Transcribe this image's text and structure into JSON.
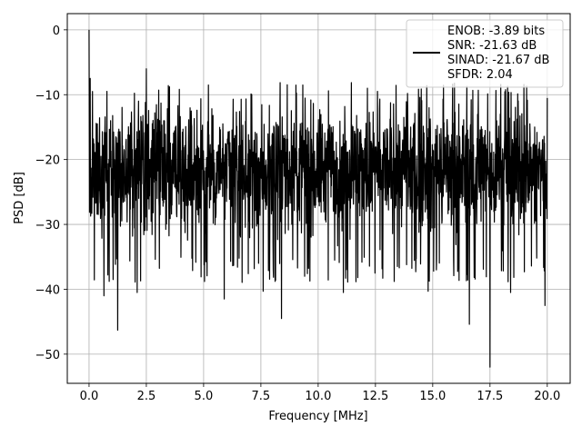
{
  "chart_data": {
    "type": "line",
    "title": "",
    "xlabel": "Frequency [MHz]",
    "ylabel": "PSD [dB]",
    "xlim": [
      -0.95,
      21.0
    ],
    "ylim": [
      -54.5,
      2.5
    ],
    "xticks": [
      0.0,
      2.5,
      5.0,
      7.5,
      10.0,
      12.5,
      15.0,
      17.5,
      20.0
    ],
    "xtick_labels": [
      "0.0",
      "2.5",
      "5.0",
      "7.5",
      "10.0",
      "12.5",
      "15.0",
      "17.5",
      "20.0"
    ],
    "yticks": [
      0,
      -10,
      -20,
      -30,
      -40,
      -50
    ],
    "ytick_labels": [
      "0",
      "−10",
      "−20",
      "−30",
      "−40",
      "−50"
    ],
    "grid": true,
    "legend_position": "top-right",
    "legend_entries": [
      "ENOB: -3.89 bits",
      "SNR: -21.63 dB",
      "SINAD: -21.67 dB",
      "SFDR: 2.04"
    ],
    "series": [
      {
        "color": "#000000",
        "x_start": 0.0,
        "x_end": 20.0,
        "noise_mean": -20,
        "noise_min": -35,
        "noise_max": -8,
        "peaks": [
          {
            "x": 0.0,
            "y": 0.0
          },
          {
            "x": 0.05,
            "y": -7.5
          },
          {
            "x": 0.15,
            "y": -9.5
          },
          {
            "x": 0.65,
            "y": -41.0
          },
          {
            "x": 1.05,
            "y": -38.5
          },
          {
            "x": 1.25,
            "y": -46.3
          },
          {
            "x": 2.1,
            "y": -40.5
          },
          {
            "x": 2.5,
            "y": -6.0
          },
          {
            "x": 5.9,
            "y": -41.5
          },
          {
            "x": 7.6,
            "y": -40.3
          },
          {
            "x": 8.4,
            "y": -44.5
          },
          {
            "x": 11.1,
            "y": -40.5
          },
          {
            "x": 14.8,
            "y": -40.3
          },
          {
            "x": 16.6,
            "y": -45.4
          },
          {
            "x": 17.5,
            "y": -52.0
          },
          {
            "x": 18.4,
            "y": -40.5
          },
          {
            "x": 19.9,
            "y": -42.5
          },
          {
            "x": 20.0,
            "y": -10.5
          }
        ]
      }
    ]
  }
}
